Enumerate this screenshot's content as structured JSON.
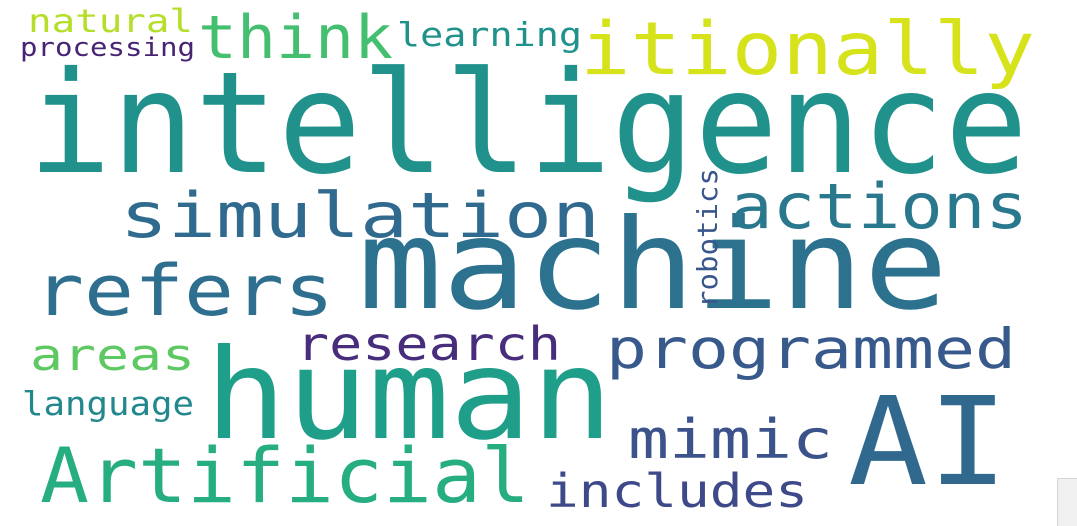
{
  "words": [
    {
      "key": "intelligence",
      "text": "intelligence",
      "color": "#21918c"
    },
    {
      "key": "machine",
      "text": "machine",
      "color": "#2c728e"
    },
    {
      "key": "human",
      "text": "human",
      "color": "#1f9e89"
    },
    {
      "key": "ai",
      "text": "AI",
      "color": "#31688e"
    },
    {
      "key": "itionally",
      "text": "itionally",
      "color": "#d6e21a"
    },
    {
      "key": "artificial",
      "text": "Artificial",
      "color": "#26ad81"
    },
    {
      "key": "simulation",
      "text": "simulation",
      "color": "#306a8e"
    },
    {
      "key": "refers",
      "text": "refers",
      "color": "#2e6e8e"
    },
    {
      "key": "actions",
      "text": "actions",
      "color": "#2a788e"
    },
    {
      "key": "think",
      "text": "think",
      "color": "#44bf70"
    },
    {
      "key": "programmed",
      "text": "programmed",
      "color": "#38598c"
    },
    {
      "key": "research",
      "text": "research",
      "color": "#472d7b"
    },
    {
      "key": "mimic",
      "text": "mimic",
      "color": "#3b528b"
    },
    {
      "key": "includes",
      "text": "includes",
      "color": "#3e4989"
    },
    {
      "key": "areas",
      "text": "areas",
      "color": "#5ec962"
    },
    {
      "key": "language",
      "text": "language",
      "color": "#23888e"
    },
    {
      "key": "natural",
      "text": "natural",
      "color": "#b5de2b"
    },
    {
      "key": "processing",
      "text": "processing",
      "color": "#482475"
    },
    {
      "key": "learning",
      "text": "learning",
      "color": "#20928c"
    },
    {
      "key": "robotics",
      "text": "robotics",
      "color": "#39568c"
    }
  ]
}
